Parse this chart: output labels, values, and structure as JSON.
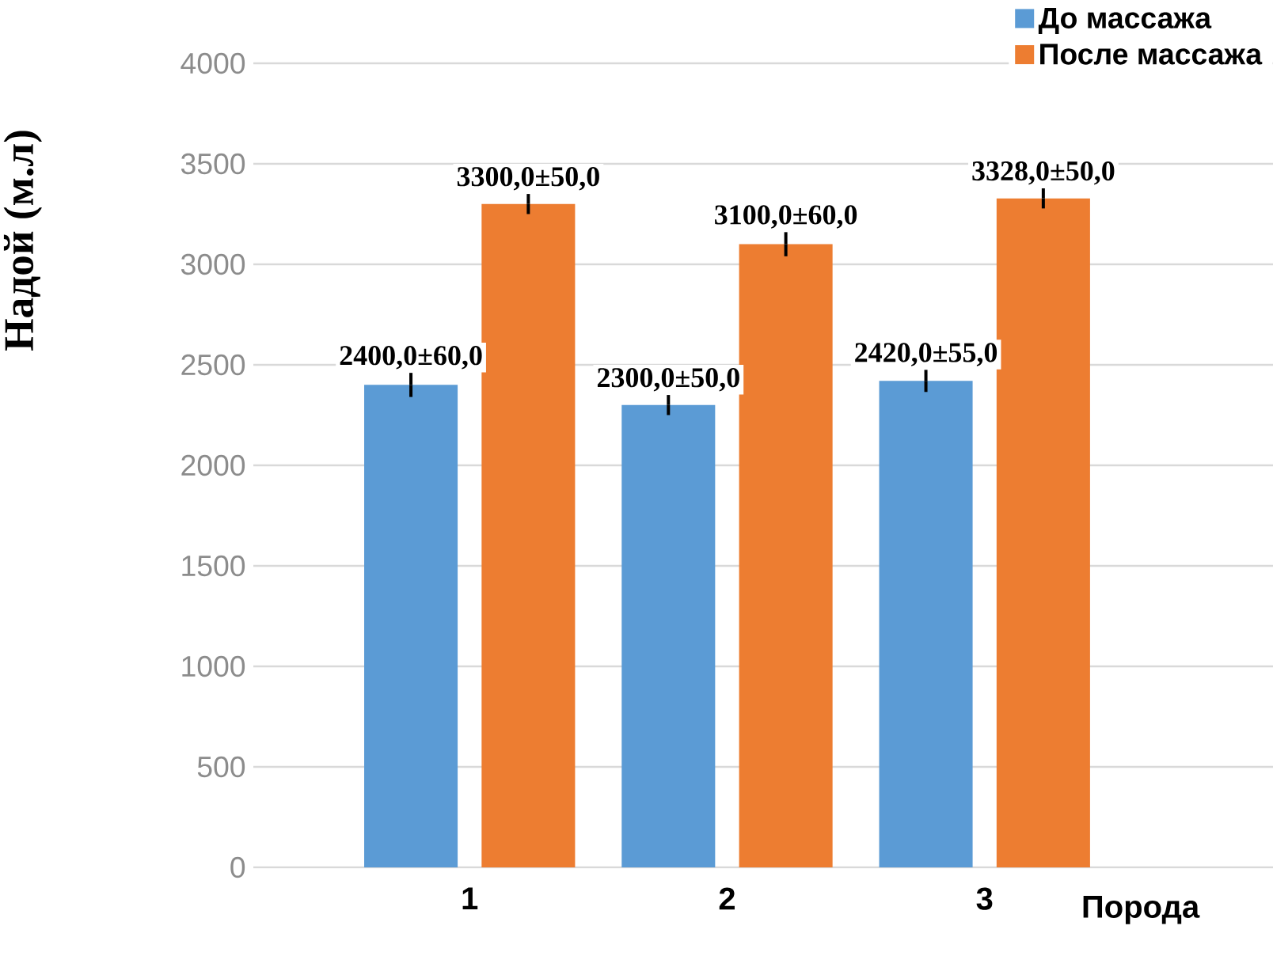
{
  "chart_data": {
    "type": "bar",
    "xlabel": "Порода",
    "ylabel": "Надой (м.л)",
    "categories": [
      "1",
      "2",
      "3"
    ],
    "series": [
      {
        "name": "До массажа",
        "color": "#5b9bd5",
        "values": [
          2400,
          2300,
          2420
        ],
        "errors": [
          60,
          50,
          55
        ],
        "value_labels": [
          "2400,0±60,0",
          "2300,0±50,0",
          "2420,0±55,0"
        ]
      },
      {
        "name": "После массажа",
        "color": "#ed7d31",
        "values": [
          3300,
          3100,
          3328
        ],
        "errors": [
          50,
          60,
          50
        ],
        "value_labels": [
          "3300,0±50,0",
          "3100,0±60,0",
          "3328,0±50,0"
        ]
      }
    ],
    "ylim": [
      0,
      4000
    ],
    "yticks": [
      0,
      500,
      1000,
      1500,
      2000,
      2500,
      3000,
      3500,
      4000
    ],
    "grid": "y",
    "legend": "top right"
  }
}
